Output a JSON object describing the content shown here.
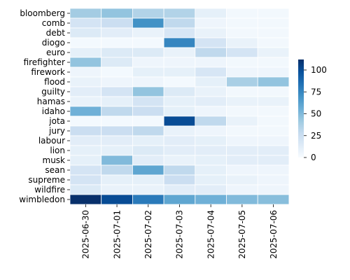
{
  "chart_data": {
    "type": "heatmap",
    "title": "",
    "xlabel": "",
    "ylabel": "",
    "x_categories": [
      "2025-06-30",
      "2025-07-01",
      "2025-07-02",
      "2025-07-03",
      "2025-07-04",
      "2025-07-05",
      "2025-07-06"
    ],
    "y_categories": [
      "bloomberg",
      "comb",
      "debt",
      "diogo",
      "euro",
      "firefighter",
      "firework",
      "flood",
      "guilty",
      "hamas",
      "idaho",
      "jota",
      "jury",
      "labour",
      "lion",
      "musk",
      "sean",
      "supreme",
      "wildfire",
      "wimbledon"
    ],
    "values": [
      [
        40,
        45,
        35,
        35,
        10,
        3,
        3
      ],
      [
        20,
        25,
        70,
        30,
        5,
        3,
        3
      ],
      [
        15,
        12,
        8,
        18,
        8,
        3,
        3
      ],
      [
        2,
        2,
        2,
        75,
        20,
        8,
        3
      ],
      [
        10,
        15,
        15,
        8,
        30,
        20,
        8
      ],
      [
        45,
        15,
        5,
        5,
        5,
        3,
        3
      ],
      [
        5,
        2,
        10,
        10,
        18,
        5,
        5
      ],
      [
        8,
        5,
        5,
        2,
        10,
        38,
        45
      ],
      [
        12,
        20,
        45,
        15,
        8,
        3,
        3
      ],
      [
        8,
        10,
        20,
        10,
        12,
        8,
        8
      ],
      [
        55,
        30,
        25,
        10,
        5,
        3,
        3
      ],
      [
        2,
        2,
        2,
        100,
        30,
        8,
        3
      ],
      [
        25,
        25,
        30,
        8,
        5,
        3,
        3
      ],
      [
        12,
        12,
        10,
        12,
        10,
        5,
        5
      ],
      [
        10,
        10,
        15,
        12,
        12,
        12,
        12
      ],
      [
        10,
        50,
        12,
        8,
        10,
        12,
        12
      ],
      [
        20,
        30,
        60,
        30,
        10,
        5,
        5
      ],
      [
        20,
        10,
        10,
        25,
        10,
        8,
        5
      ],
      [
        15,
        8,
        8,
        12,
        12,
        5,
        5
      ],
      [
        112,
        100,
        80,
        60,
        55,
        50,
        48
      ]
    ],
    "colorbar": {
      "min": 0,
      "max": 112,
      "ticks": [
        0,
        25,
        50,
        75,
        100
      ],
      "colormap": "Blues"
    },
    "grid_line_color": "#ffffff"
  }
}
